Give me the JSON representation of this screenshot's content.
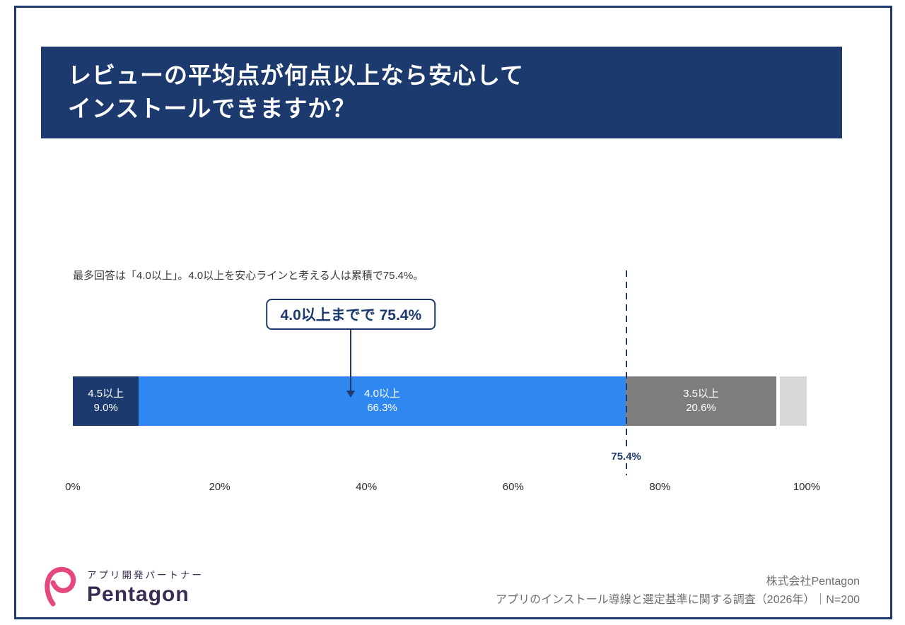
{
  "header": {
    "title_line1": "レビューの平均点が何点以上なら安心して",
    "title_line2": "インストールできますか？"
  },
  "lead_text": "最多回答は「4.0以上」。4.0以上を安心ラインと考える人は累積で75.4%。",
  "callout": {
    "label": "4.0以上までで 75.4%"
  },
  "chart_data": {
    "type": "bar",
    "orientation": "horizontal",
    "stacked": true,
    "title": "レビューの平均点が何点以上なら安心してインストールできますか？",
    "segments": [
      {
        "label": "4.5以上",
        "value": 9.0,
        "value_label": "9.0%",
        "color": "#1d3a6e"
      },
      {
        "label": "4.0以上",
        "value": 66.3,
        "value_label": "66.3%",
        "color": "#2f87f0"
      },
      {
        "label": "3.5以上",
        "value": 20.6,
        "value_label": "20.6%",
        "color": "#7d7d7d"
      },
      {
        "label": "",
        "value": 4.1,
        "value_label": "",
        "color": "#d8d8d8"
      }
    ],
    "x_ticks": [
      "0%",
      "20%",
      "40%",
      "60%",
      "80%",
      "100%"
    ],
    "xlim": [
      0,
      100
    ],
    "grid": false,
    "legend": false,
    "threshold": {
      "value": 75.4,
      "label": "75.4%"
    },
    "annotation_callout": "4.0以上までで 75.4%"
  },
  "footer": {
    "logo": {
      "tagline": "アプリ開発パートナー",
      "wordmark": "Pentagon",
      "accent_color": "#e5487e"
    },
    "company": "株式会社Pentagon",
    "source": "アプリのインストール導線と選定基準に関する調査（2026年）｜N=200"
  }
}
